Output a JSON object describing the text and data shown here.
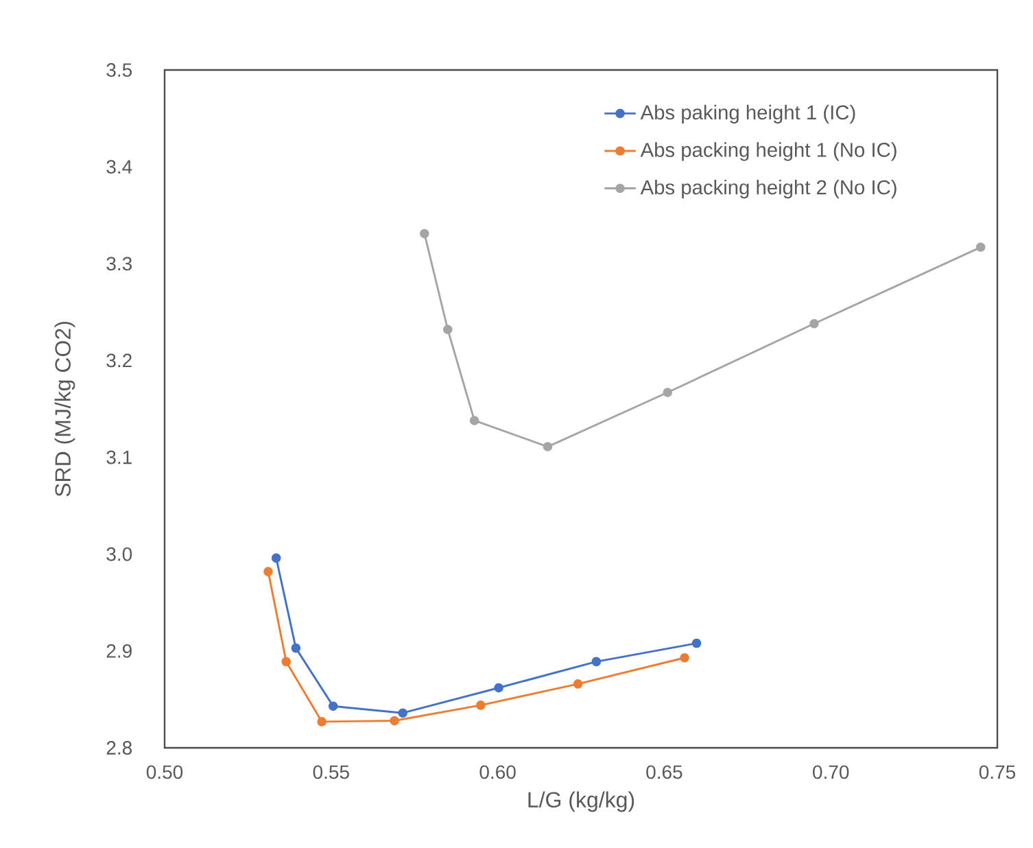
{
  "chart_data": {
    "type": "line",
    "xlabel": "L/G (kg/kg)",
    "ylabel": "SRD (MJ/kg CO2)",
    "xlim": [
      0.5,
      0.75
    ],
    "ylim": [
      2.8,
      3.5
    ],
    "xticks": [
      {
        "value": 0.5,
        "label": "0.50"
      },
      {
        "value": 0.55,
        "label": "0.55"
      },
      {
        "value": 0.6,
        "label": "0.60"
      },
      {
        "value": 0.65,
        "label": "0.65"
      },
      {
        "value": 0.7,
        "label": "0.70"
      },
      {
        "value": 0.75,
        "label": "0.75"
      }
    ],
    "yticks": [
      2.8,
      2.9,
      {
        "value": 3.0,
        "label": "3.0"
      },
      3.1,
      3.2,
      3.3,
      3.4,
      3.5
    ],
    "marker": "circle",
    "line_style": "solid",
    "legend": "top right",
    "grid": false,
    "series": [
      {
        "name": "Abs paking height 1 (IC)",
        "color": "#4472c4",
        "x": [
          0.5335,
          0.5394,
          0.5506,
          0.5715,
          0.6003,
          0.6296,
          0.6597
        ],
        "values": [
          2.996,
          2.903,
          2.843,
          2.836,
          2.862,
          2.889,
          2.908
        ]
      },
      {
        "name": "Abs packing height 1 (No IC)",
        "color": "#ed7d31",
        "x": [
          0.5311,
          0.5365,
          0.5472,
          0.569,
          0.5949,
          0.6241,
          0.6561
        ],
        "values": [
          2.982,
          2.889,
          2.827,
          2.828,
          2.844,
          2.866,
          2.893
        ]
      },
      {
        "name": "Abs packing height 2 (No IC)",
        "color": "#a5a5a5",
        "x": [
          0.578,
          0.585,
          0.593,
          0.615,
          0.651,
          0.695,
          0.745
        ],
        "values": [
          3.331,
          3.232,
          3.138,
          3.111,
          3.167,
          3.238,
          3.317
        ]
      }
    ]
  }
}
